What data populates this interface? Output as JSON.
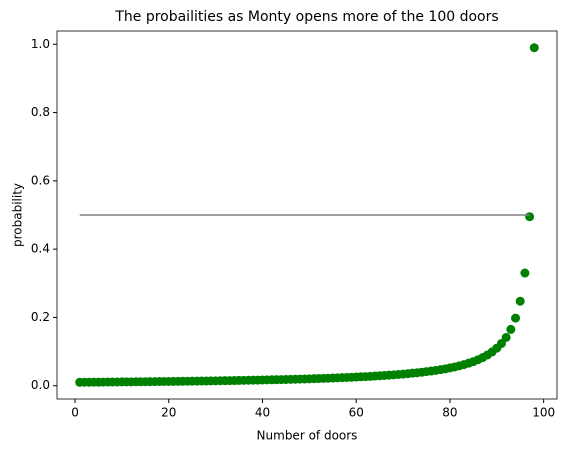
{
  "chart_data": {
    "type": "scatter",
    "title": "The probailities as Monty opens more of the 100 doors",
    "xlabel": "Number of doors",
    "ylabel": "probability",
    "series": [
      {
        "type": "scatter",
        "color": "#008000",
        "x": [
          1,
          2,
          3,
          4,
          5,
          6,
          7,
          8,
          9,
          10,
          11,
          12,
          13,
          14,
          15,
          16,
          17,
          18,
          19,
          20,
          21,
          22,
          23,
          24,
          25,
          26,
          27,
          28,
          29,
          30,
          31,
          32,
          33,
          34,
          35,
          36,
          37,
          38,
          39,
          40,
          41,
          42,
          43,
          44,
          45,
          46,
          47,
          48,
          49,
          50,
          51,
          52,
          53,
          54,
          55,
          56,
          57,
          58,
          59,
          60,
          61,
          62,
          63,
          64,
          65,
          66,
          67,
          68,
          69,
          70,
          71,
          72,
          73,
          74,
          75,
          76,
          77,
          78,
          79,
          80,
          81,
          82,
          83,
          84,
          85,
          86,
          87,
          88,
          89,
          90,
          91,
          92,
          93,
          94,
          95,
          96,
          97,
          98
        ],
        "values": [
          0.0101,
          0.0102,
          0.0103,
          0.0104,
          0.0105,
          0.0106,
          0.0108,
          0.0109,
          0.011,
          0.0111,
          0.0113,
          0.0114,
          0.0115,
          0.0116,
          0.0118,
          0.0119,
          0.0121,
          0.0122,
          0.0124,
          0.0125,
          0.0127,
          0.0129,
          0.013,
          0.0132,
          0.0134,
          0.0136,
          0.0138,
          0.0139,
          0.0141,
          0.0143,
          0.0146,
          0.0148,
          0.015,
          0.0152,
          0.0155,
          0.0157,
          0.016,
          0.0162,
          0.0165,
          0.0168,
          0.0171,
          0.0174,
          0.0177,
          0.018,
          0.0183,
          0.0187,
          0.019,
          0.0194,
          0.0198,
          0.0202,
          0.0206,
          0.0211,
          0.0215,
          0.022,
          0.0225,
          0.023,
          0.0236,
          0.0241,
          0.0248,
          0.0254,
          0.0261,
          0.0268,
          0.0275,
          0.0283,
          0.0291,
          0.03,
          0.0309,
          0.0319,
          0.033,
          0.0341,
          0.0354,
          0.0367,
          0.0381,
          0.0396,
          0.0413,
          0.043,
          0.045,
          0.0471,
          0.0495,
          0.0521,
          0.055,
          0.0582,
          0.0619,
          0.066,
          0.0707,
          0.0762,
          0.0825,
          0.09,
          0.099,
          0.11,
          0.1238,
          0.1414,
          0.165,
          0.198,
          0.2475,
          0.33,
          0.495,
          0.99
        ]
      },
      {
        "type": "line",
        "color": "#808080",
        "x": [
          1,
          97
        ],
        "values": [
          0.5,
          0.5
        ]
      }
    ],
    "xlim": [
      -3.85,
      102.85
    ],
    "xticks": [
      0,
      20,
      40,
      60,
      80,
      100
    ],
    "ylim": [
      -0.0389,
      1.0389
    ],
    "yticks": [
      {
        "value": 0,
        "label": "0.0"
      },
      0.2,
      0.4,
      0.6,
      0.8,
      {
        "value": 1,
        "label": "1.0"
      }
    ]
  }
}
